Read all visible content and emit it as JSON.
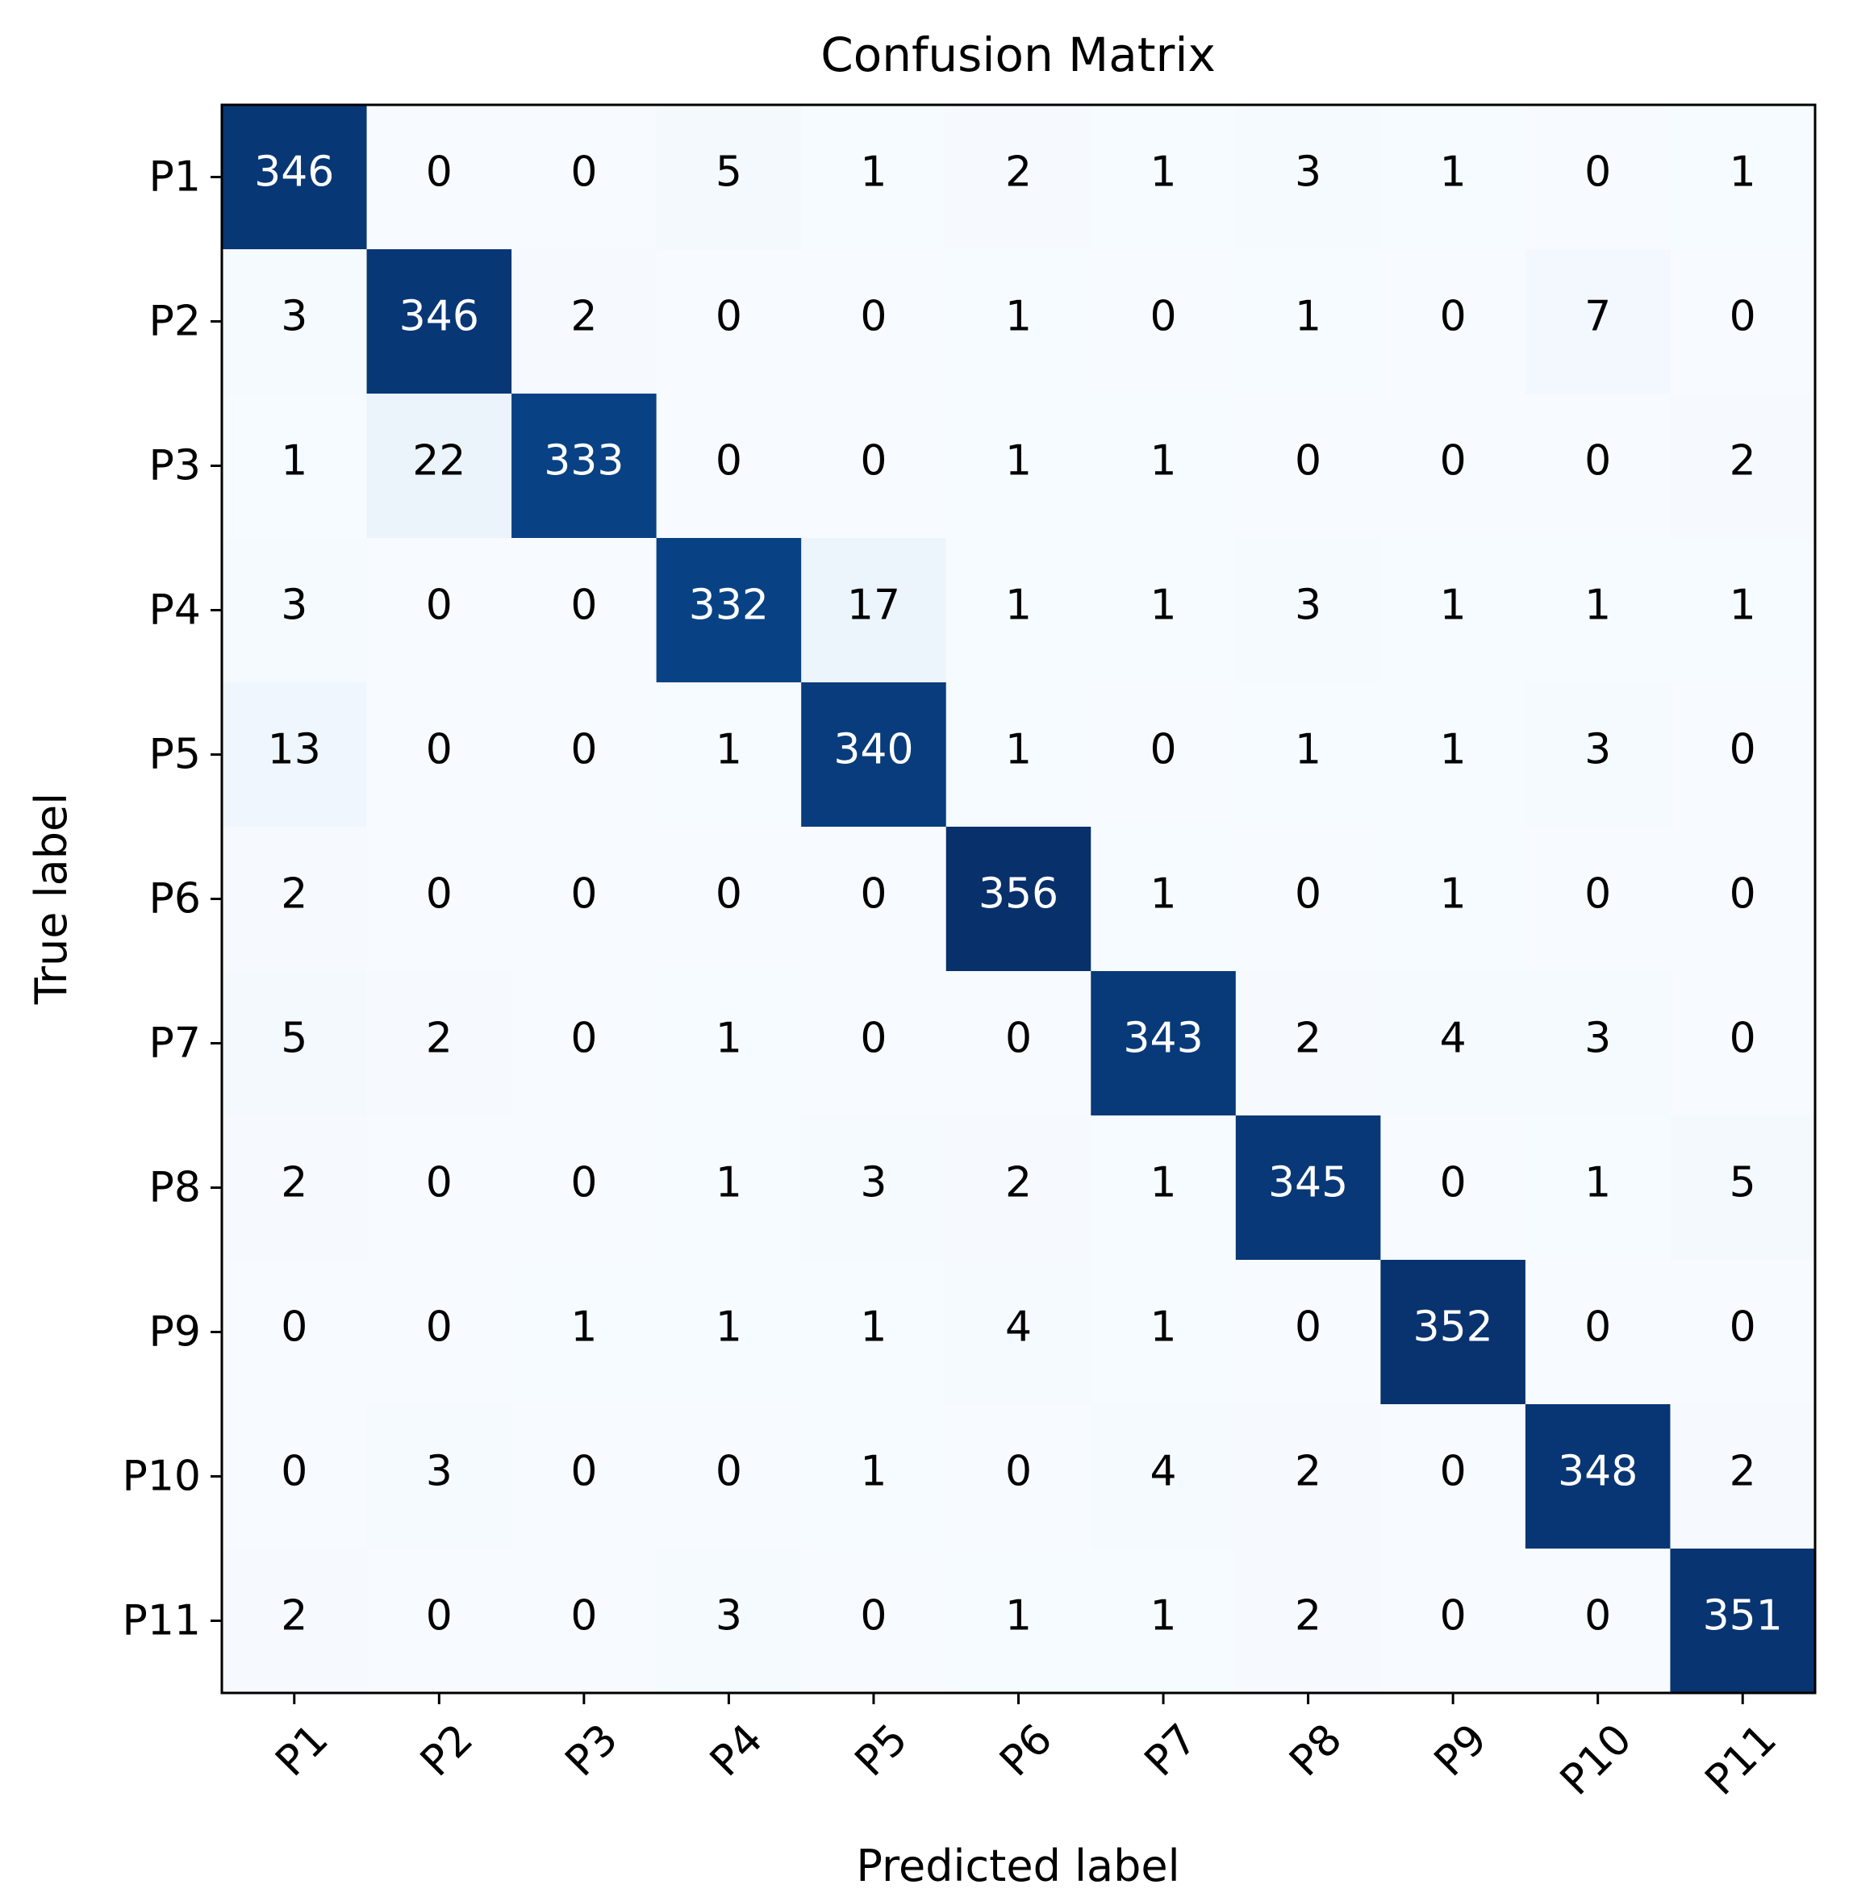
{
  "chart_data": {
    "type": "heatmap",
    "title": "Confusion Matrix",
    "xlabel": "Predicted label",
    "ylabel": "True label",
    "x_categories": [
      "P1",
      "P2",
      "P3",
      "P4",
      "P5",
      "P6",
      "P7",
      "P8",
      "P9",
      "P10",
      "P11"
    ],
    "y_categories": [
      "P1",
      "P2",
      "P3",
      "P4",
      "P5",
      "P6",
      "P7",
      "P8",
      "P9",
      "P10",
      "P11"
    ],
    "values": [
      [
        346,
        0,
        0,
        5,
        1,
        2,
        1,
        3,
        1,
        0,
        1
      ],
      [
        3,
        346,
        2,
        0,
        0,
        1,
        0,
        1,
        0,
        7,
        0
      ],
      [
        1,
        22,
        333,
        0,
        0,
        1,
        1,
        0,
        0,
        0,
        2
      ],
      [
        3,
        0,
        0,
        332,
        17,
        1,
        1,
        3,
        1,
        1,
        1
      ],
      [
        13,
        0,
        0,
        1,
        340,
        1,
        0,
        1,
        1,
        3,
        0
      ],
      [
        2,
        0,
        0,
        0,
        0,
        356,
        1,
        0,
        1,
        0,
        0
      ],
      [
        5,
        2,
        0,
        1,
        0,
        0,
        343,
        2,
        4,
        3,
        0
      ],
      [
        2,
        0,
        0,
        1,
        3,
        2,
        1,
        345,
        0,
        1,
        5
      ],
      [
        0,
        0,
        1,
        1,
        1,
        4,
        1,
        0,
        352,
        0,
        0
      ],
      [
        0,
        3,
        0,
        0,
        1,
        0,
        4,
        2,
        0,
        348,
        2
      ],
      [
        2,
        0,
        0,
        3,
        0,
        1,
        1,
        2,
        0,
        0,
        351
      ]
    ],
    "colormap": "Blues",
    "colormap_low": "#f7fbff",
    "colormap_high": "#08306b",
    "xtick_rotation": 45,
    "grid": false
  }
}
